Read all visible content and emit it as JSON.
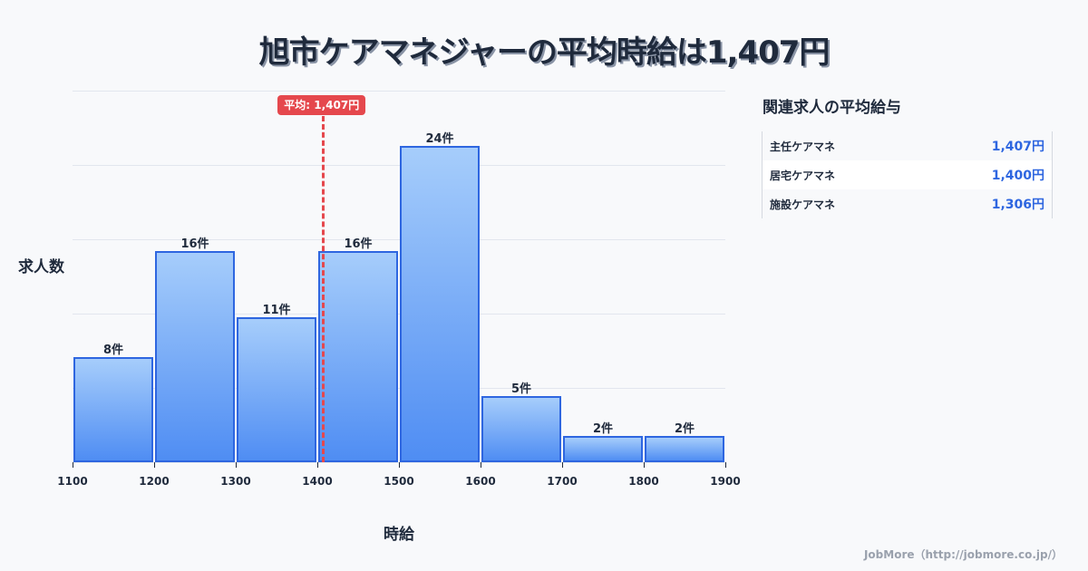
{
  "title": "旭市ケアマネジャーの平均時給は1,407円",
  "chart_data": {
    "type": "bar",
    "title": "旭市ケアマネジャーの平均時給は1,407円",
    "xlabel": "時給",
    "ylabel": "求人数",
    "bins": [
      [
        1100,
        1200
      ],
      [
        1200,
        1300
      ],
      [
        1300,
        1400
      ],
      [
        1400,
        1500
      ],
      [
        1500,
        1600
      ],
      [
        1600,
        1700
      ],
      [
        1700,
        1800
      ],
      [
        1800,
        1900
      ]
    ],
    "categories": [
      "1100-1200",
      "1200-1300",
      "1300-1400",
      "1400-1500",
      "1500-1600",
      "1600-1700",
      "1700-1800",
      "1800-1900"
    ],
    "values": [
      8,
      16,
      11,
      16,
      24,
      5,
      2,
      2
    ],
    "value_labels": [
      "8件",
      "16件",
      "11件",
      "16件",
      "24件",
      "5件",
      "2件",
      "2件"
    ],
    "x_ticks": [
      "1100",
      "1200",
      "1300",
      "1400",
      "1500",
      "1600",
      "1700",
      "1800",
      "1900"
    ],
    "xlim": [
      1100,
      1900
    ],
    "ylim": [
      0,
      28.2
    ],
    "grid": true,
    "mean": 1407,
    "mean_label": "平均: 1,407円",
    "colors": {
      "bar_top": "#a6cdfb",
      "bar_bottom": "#4f8df3",
      "bar_border": "#2e66e0",
      "mean_line": "#e5484d"
    }
  },
  "sidebar": {
    "title": "関連求人の平均給与",
    "rows": [
      {
        "name": "主任ケアマネ",
        "value": "1,407円"
      },
      {
        "name": "居宅ケアマネ",
        "value": "1,400円"
      },
      {
        "name": "施設ケアマネ",
        "value": "1,306円"
      }
    ]
  },
  "footer": "JobMore（http://jobmore.co.jp/）"
}
